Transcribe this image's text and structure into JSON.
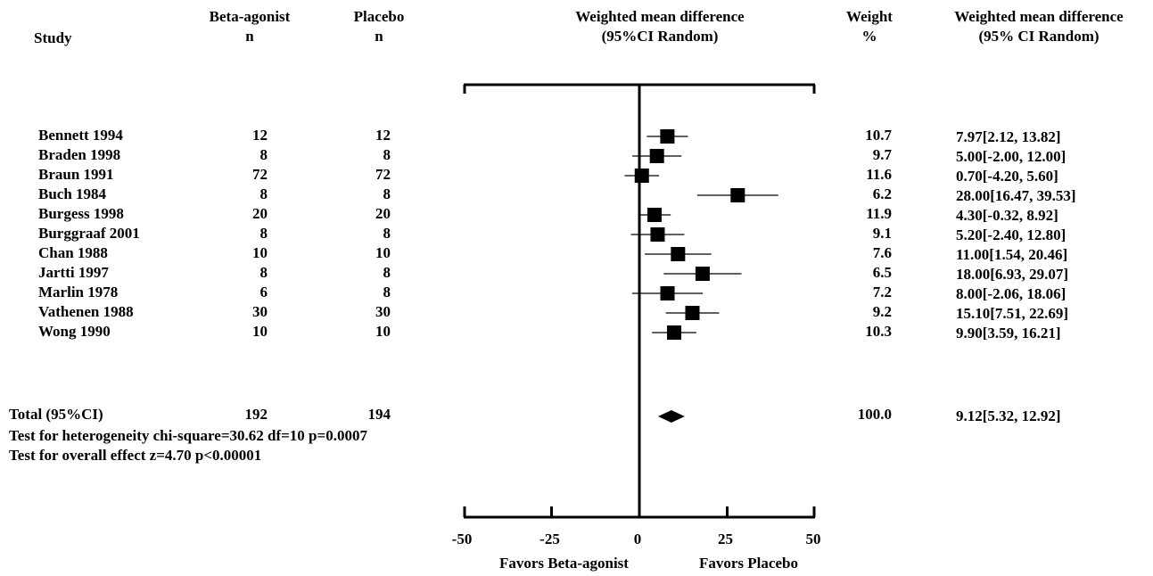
{
  "headers": {
    "study": "Study",
    "beta": [
      "Beta-agonist",
      "n"
    ],
    "placebo": [
      "Placebo",
      "n"
    ],
    "plot": [
      "Weighted mean difference",
      "(95%CI Random)"
    ],
    "weight": [
      "Weight",
      "%"
    ],
    "ci": [
      "Weighted mean difference",
      "(95% CI Random)"
    ]
  },
  "studies": [
    {
      "name": "Bennett 1994",
      "beta_n": "12",
      "placebo_n": "12",
      "weight": "10.7",
      "ci_text": "7.97[2.12, 13.82]"
    },
    {
      "name": "Braden 1998",
      "beta_n": "8",
      "placebo_n": "8",
      "weight": "9.7",
      "ci_text": "5.00[-2.00, 12.00]"
    },
    {
      "name": "Braun 1991",
      "beta_n": "72",
      "placebo_n": "72",
      "weight": "11.6",
      "ci_text": "0.70[-4.20, 5.60]"
    },
    {
      "name": "Buch 1984",
      "beta_n": "8",
      "placebo_n": "8",
      "weight": "6.2",
      "ci_text": "28.00[16.47, 39.53]"
    },
    {
      "name": "Burgess 1998",
      "beta_n": "20",
      "placebo_n": "20",
      "weight": "11.9",
      "ci_text": "4.30[-0.32, 8.92]"
    },
    {
      "name": "Burggraaf 2001",
      "beta_n": "8",
      "placebo_n": "8",
      "weight": "9.1",
      "ci_text": "5.20[-2.40, 12.80]"
    },
    {
      "name": "Chan 1988",
      "beta_n": "10",
      "placebo_n": "10",
      "weight": "7.6",
      "ci_text": "11.00[1.54, 20.46]"
    },
    {
      "name": "Jartti 1997",
      "beta_n": "8",
      "placebo_n": "8",
      "weight": "6.5",
      "ci_text": "18.00[6.93, 29.07]"
    },
    {
      "name": "Marlin 1978",
      "beta_n": "6",
      "placebo_n": "8",
      "weight": "7.2",
      "ci_text": "8.00[-2.06, 18.06]"
    },
    {
      "name": "Vathenen 1988",
      "beta_n": "30",
      "placebo_n": "30",
      "weight": "9.2",
      "ci_text": "15.10[7.51, 22.69]"
    },
    {
      "name": "Wong 1990",
      "beta_n": "10",
      "placebo_n": "10",
      "weight": "10.3",
      "ci_text": "9.90[3.59, 16.21]"
    }
  ],
  "total": {
    "label": "Total (95%CI)",
    "beta_n": "192",
    "placebo_n": "194",
    "weight": "100.0",
    "ci_text": "9.12[5.32, 12.92]"
  },
  "footnotes": {
    "heterogeneity": "Test for heterogeneity chi-square=30.62 df=10 p=0.0007",
    "overall": "Test for overall effect z=4.70 p<0.00001"
  },
  "axis_labels": {
    "left": "Favors Beta-agonist",
    "right": "Favors Placebo"
  },
  "chart_data": {
    "type": "forest",
    "xlim": [
      -50,
      50
    ],
    "ticks": [
      -50,
      -25,
      0,
      25,
      50
    ],
    "tick_labels": [
      "-50",
      "-25",
      "0",
      "25",
      "50"
    ],
    "points": [
      {
        "study": "Bennett 1994",
        "mean": 7.97,
        "lower": 2.12,
        "upper": 13.82
      },
      {
        "study": "Braden 1998",
        "mean": 5.0,
        "lower": -2.0,
        "upper": 12.0
      },
      {
        "study": "Braun 1991",
        "mean": 0.7,
        "lower": -4.2,
        "upper": 5.6
      },
      {
        "study": "Buch 1984",
        "mean": 28.0,
        "lower": 16.47,
        "upper": 39.53
      },
      {
        "study": "Burgess 1998",
        "mean": 4.3,
        "lower": -0.32,
        "upper": 8.92
      },
      {
        "study": "Burggraaf 2001",
        "mean": 5.2,
        "lower": -2.4,
        "upper": 12.8
      },
      {
        "study": "Chan 1988",
        "mean": 11.0,
        "lower": 1.54,
        "upper": 20.46
      },
      {
        "study": "Jartti 1997",
        "mean": 18.0,
        "lower": 6.93,
        "upper": 29.07
      },
      {
        "study": "Marlin 1978",
        "mean": 8.0,
        "lower": -2.06,
        "upper": 18.06
      },
      {
        "study": "Vathenen 1988",
        "mean": 15.1,
        "lower": 7.51,
        "upper": 22.69
      },
      {
        "study": "Wong 1990",
        "mean": 9.9,
        "lower": 3.59,
        "upper": 16.21
      }
    ],
    "pooled": {
      "mean": 9.12,
      "lower": 5.32,
      "upper": 12.92
    }
  }
}
